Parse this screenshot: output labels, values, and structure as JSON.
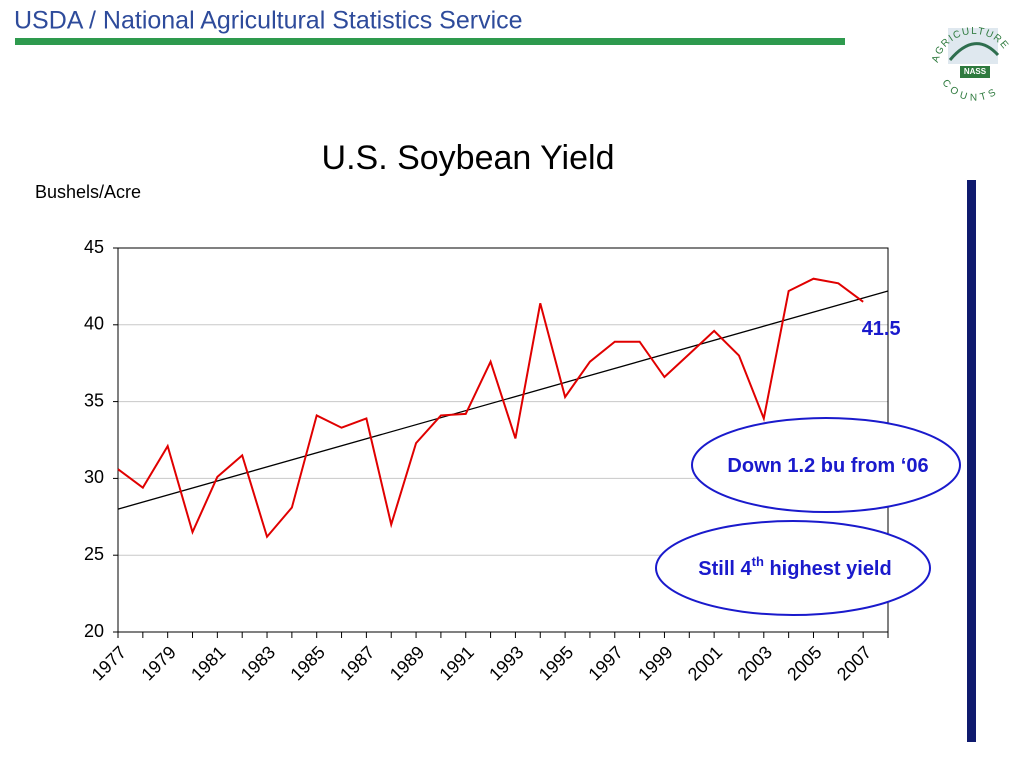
{
  "header": {
    "title": "USDA / National Agricultural Statistics Service",
    "logo": {
      "top": "AGRICULTURE",
      "bottom": "COUNTS",
      "badge": "NASS"
    }
  },
  "chart_data": {
    "type": "line",
    "title": "U.S. Soybean Yield",
    "y_label": "Bushels/Acre",
    "categories": [
      "1977",
      null,
      "1979",
      null,
      "1981",
      null,
      "1983",
      null,
      "1985",
      null,
      "1987",
      null,
      "1989",
      null,
      "1991",
      null,
      "1993",
      null,
      "1995",
      null,
      "1997",
      null,
      "1999",
      null,
      "2001",
      null,
      "2003",
      null,
      "2005",
      null,
      "2007",
      null
    ],
    "series": [
      {
        "color": "#e00000",
        "values": [
          30.6,
          29.4,
          32.1,
          26.5,
          30.1,
          31.5,
          26.2,
          28.1,
          34.1,
          33.3,
          33.9,
          27.0,
          32.3,
          34.1,
          34.2,
          37.6,
          32.6,
          41.4,
          35.3,
          37.6,
          38.9,
          38.9,
          36.6,
          38.1,
          39.6,
          38.0,
          33.9,
          42.2,
          43.0,
          42.7,
          41.5,
          null
        ]
      }
    ],
    "trend_line": {
      "color": "#000000",
      "values": [
        28.0,
        42.2
      ]
    },
    "ylim": [
      20,
      45
    ],
    "yticks": [
      20,
      25,
      30,
      35,
      40,
      45
    ],
    "grid": true,
    "annotations": [
      {
        "text": [
          "Down 1.2 bu from ‘06"
        ]
      },
      {
        "text": [
          "Still 4",
          "th",
          " highest yield"
        ]
      }
    ]
  }
}
